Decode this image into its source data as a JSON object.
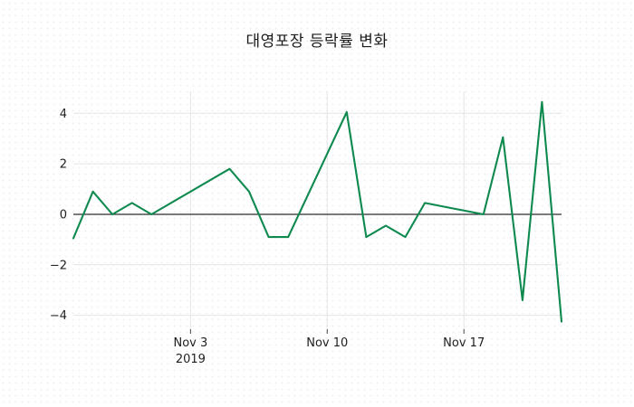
{
  "colors": {
    "line": "#0e8a4f",
    "grid": "#e4e4e4",
    "zero_line": "#2a2a2a",
    "tick": "#444444",
    "text": "#1f1f1f",
    "background": "#ffffff",
    "background_dot": "#ececf1"
  },
  "chart_data": {
    "type": "line",
    "title": "대영포장 등락률 변화",
    "xlabel": "",
    "ylabel": "",
    "grid": true,
    "legend": false,
    "zero_line_value": 0,
    "xlim_days": [
      0,
      25
    ],
    "ylim": [
      -4.55,
      4.87
    ],
    "series": [
      {
        "name": "등락률",
        "dates": [
          "2019-10-28",
          "2019-10-29",
          "2019-10-30",
          "2019-10-31",
          "2019-11-01",
          "2019-11-05",
          "2019-11-06",
          "2019-11-07",
          "2019-11-08",
          "2019-11-11",
          "2019-11-12",
          "2019-11-13",
          "2019-11-14",
          "2019-11-15",
          "2019-11-18",
          "2019-11-19",
          "2019-11-20",
          "2019-11-21",
          "2019-11-22"
        ],
        "day_offsets": [
          0,
          1,
          2,
          3,
          4,
          8,
          9,
          10,
          11,
          14,
          15,
          16,
          17,
          18,
          21,
          22,
          23,
          24,
          25
        ],
        "values": [
          -0.95,
          0.9,
          0.0,
          0.45,
          0.0,
          1.8,
          0.9,
          -0.9,
          -0.9,
          4.05,
          -0.9,
          -0.45,
          -0.9,
          0.45,
          0.0,
          3.05,
          -3.4,
          4.45,
          -4.25
        ]
      }
    ],
    "x_ticks": [
      {
        "line1": "Nov 3",
        "line2": "2019",
        "day_offset": 6
      },
      {
        "line1": "Nov 10",
        "line2": "",
        "day_offset": 13
      },
      {
        "line1": "Nov 17",
        "line2": "",
        "day_offset": 20
      }
    ],
    "y_ticks": [
      {
        "label": "−4",
        "value": -4
      },
      {
        "label": "−2",
        "value": -2
      },
      {
        "label": "0",
        "value": 0
      },
      {
        "label": "2",
        "value": 2
      },
      {
        "label": "4",
        "value": 4
      }
    ]
  }
}
